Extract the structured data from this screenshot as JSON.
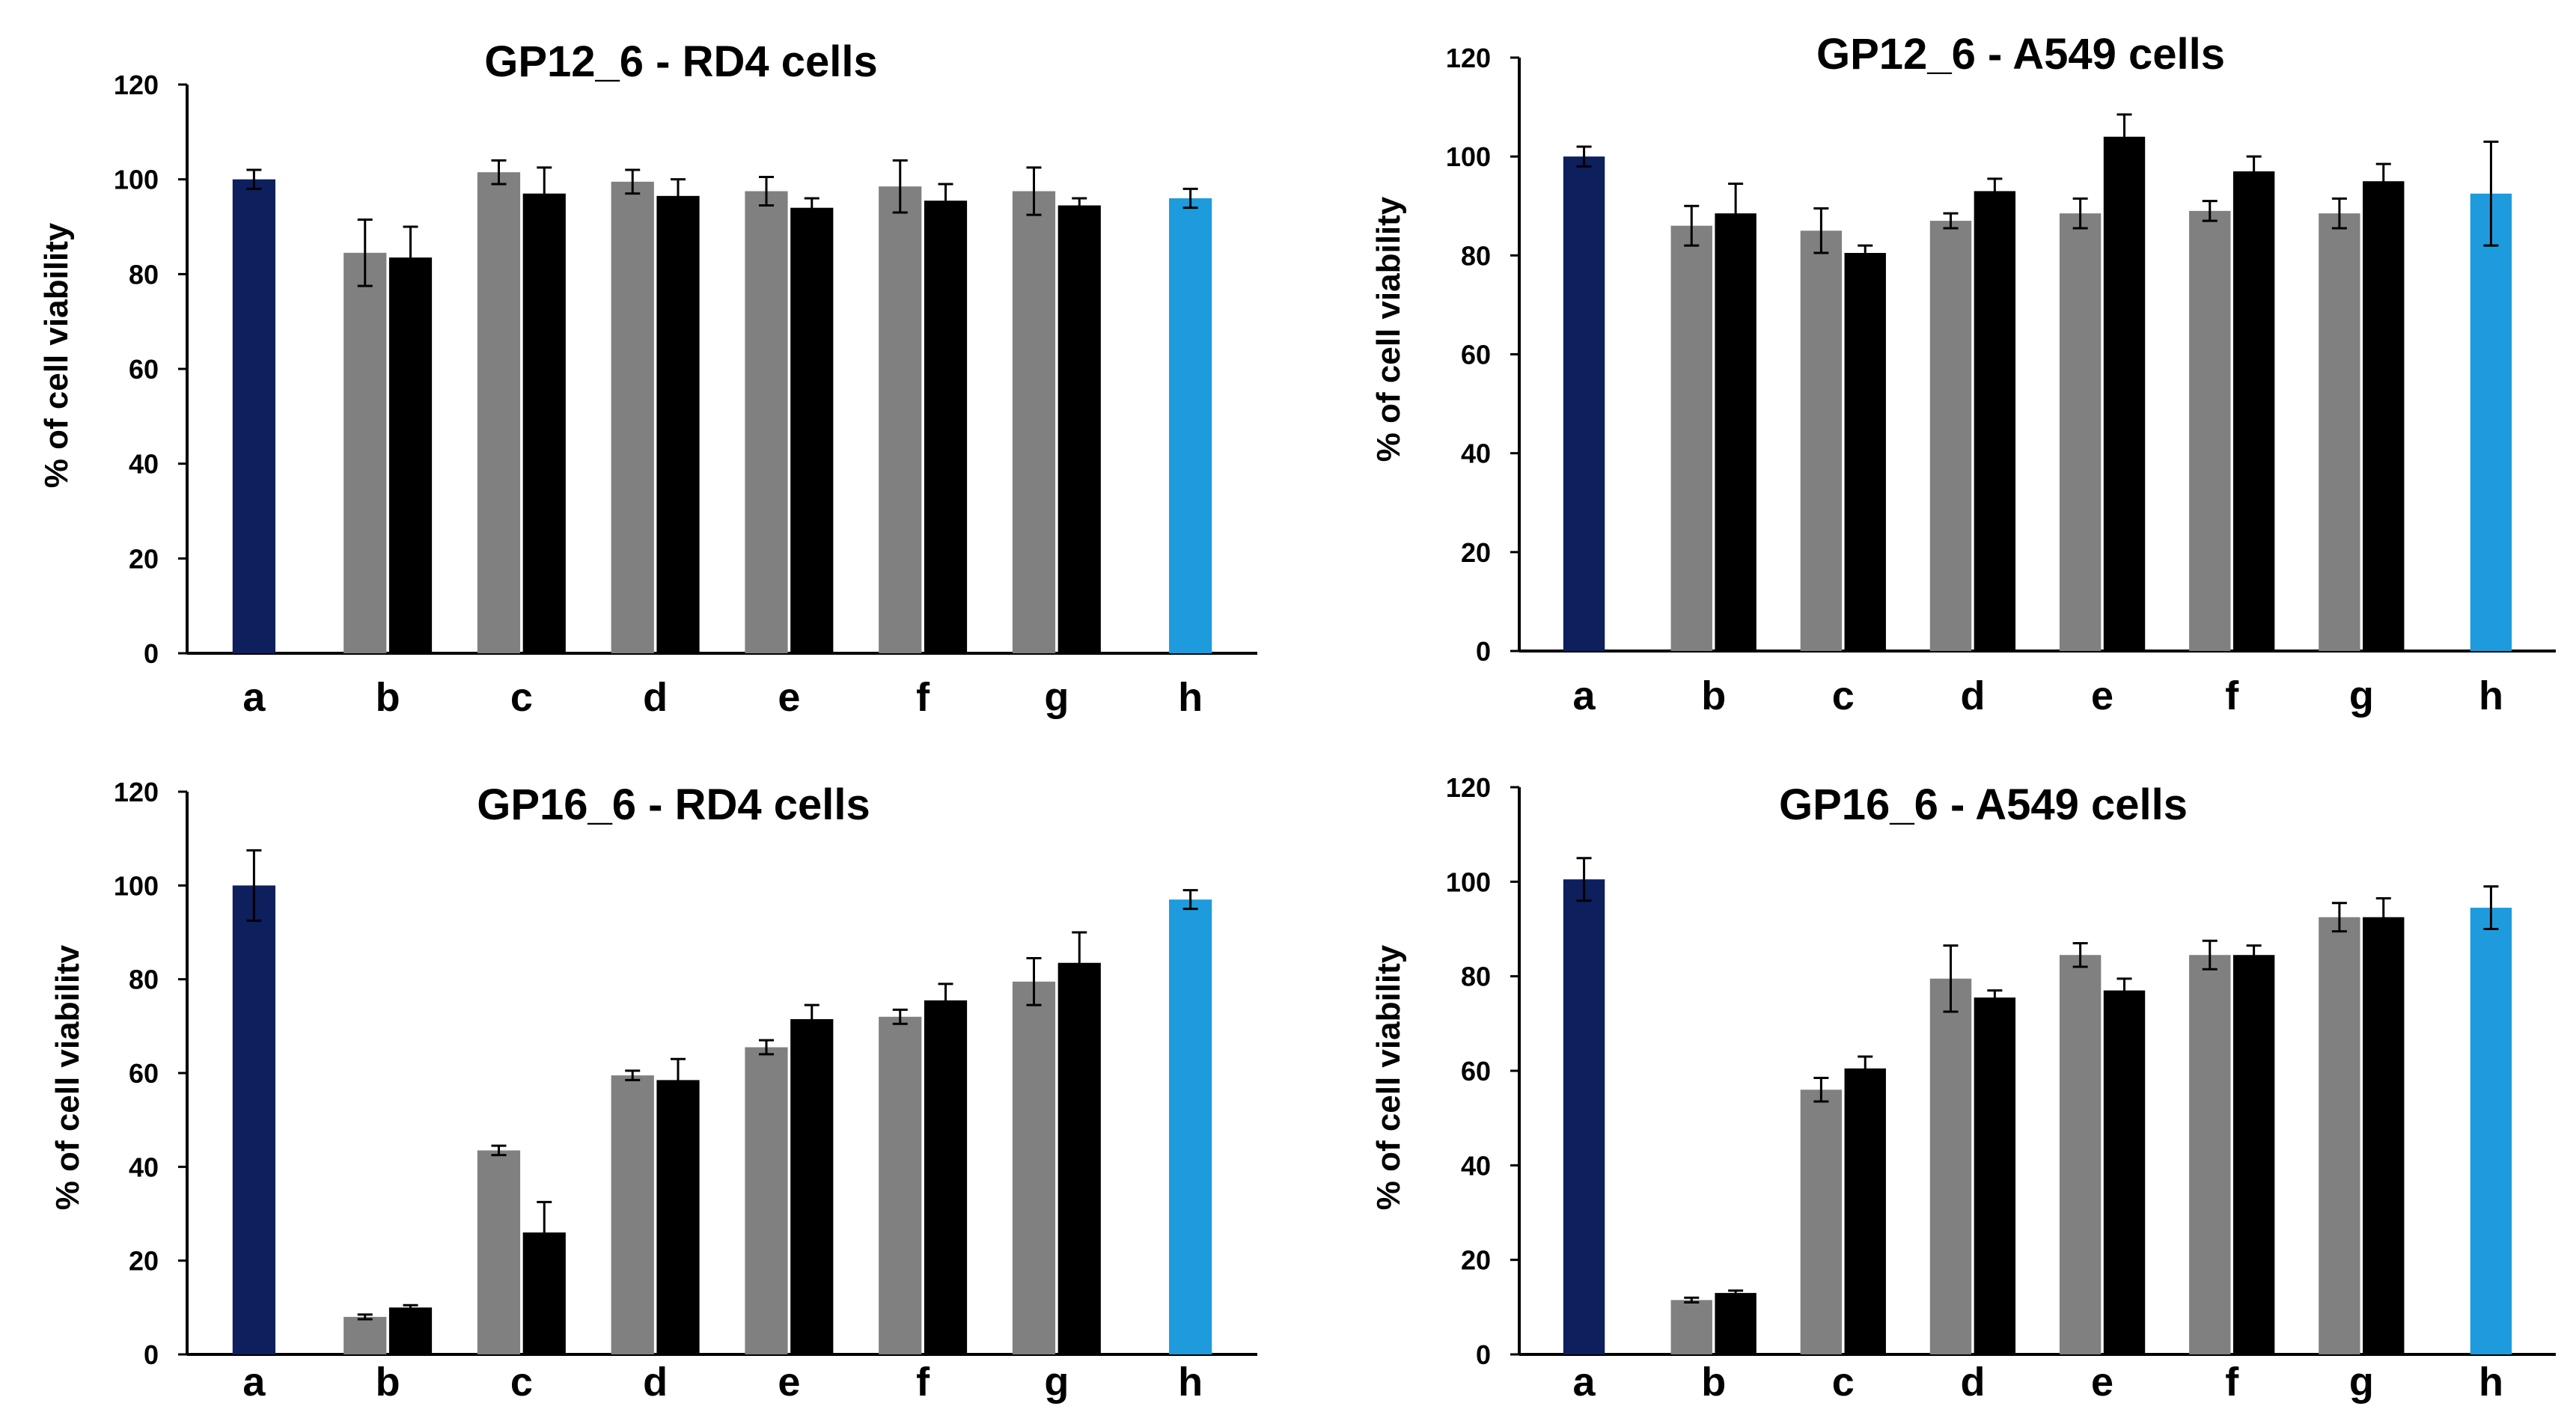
{
  "colors": {
    "control": "#0d1f5c",
    "series_gray": "#808080",
    "series_black": "#000000",
    "reference": "#1e9bdc",
    "error_bar": "#000000",
    "axis": "#000000"
  },
  "chart_data": [
    {
      "type": "bar",
      "title": "GP12_6 - RD4 cells",
      "ylabel": "% of cell viability",
      "xlabel": "",
      "ylim": [
        0,
        120
      ],
      "yticks": [
        0,
        20,
        40,
        60,
        80,
        100,
        120
      ],
      "grid": false,
      "categories": [
        "a",
        "b",
        "c",
        "d",
        "e",
        "f",
        "g",
        "h"
      ],
      "bars": [
        {
          "category": "a",
          "group": "control",
          "value": 100,
          "error": 2
        },
        {
          "category": "b",
          "group": "gray",
          "value": 84.5,
          "error": 7
        },
        {
          "category": "b",
          "group": "black",
          "value": 83.5,
          "error": 6.5
        },
        {
          "category": "c",
          "group": "gray",
          "value": 101.5,
          "error": 2.5
        },
        {
          "category": "c",
          "group": "black",
          "value": 97,
          "error": 5.5
        },
        {
          "category": "d",
          "group": "gray",
          "value": 99.5,
          "error": 2.5
        },
        {
          "category": "d",
          "group": "black",
          "value": 96.5,
          "error": 3.5
        },
        {
          "category": "e",
          "group": "gray",
          "value": 97.5,
          "error": 3
        },
        {
          "category": "e",
          "group": "black",
          "value": 94,
          "error": 2
        },
        {
          "category": "f",
          "group": "gray",
          "value": 98.5,
          "error": 5.5
        },
        {
          "category": "f",
          "group": "black",
          "value": 95.5,
          "error": 3.5
        },
        {
          "category": "g",
          "group": "gray",
          "value": 97.5,
          "error": 5
        },
        {
          "category": "g",
          "group": "black",
          "value": 94.5,
          "error": 1.5
        },
        {
          "category": "h",
          "group": "reference",
          "value": 96,
          "error": 2
        }
      ]
    },
    {
      "type": "bar",
      "title": "GP12_6 - A549 cells",
      "ylabel": "% of cell viability",
      "xlabel": "",
      "ylim": [
        0,
        120
      ],
      "yticks": [
        0,
        20,
        40,
        60,
        80,
        100,
        120
      ],
      "grid": false,
      "categories": [
        "a",
        "b",
        "c",
        "d",
        "e",
        "f",
        "g",
        "h"
      ],
      "bars": [
        {
          "category": "a",
          "group": "control",
          "value": 100,
          "error": 2
        },
        {
          "category": "b",
          "group": "gray",
          "value": 86,
          "error": 4
        },
        {
          "category": "b",
          "group": "black",
          "value": 88.5,
          "error": 6
        },
        {
          "category": "c",
          "group": "gray",
          "value": 85,
          "error": 4.5
        },
        {
          "category": "c",
          "group": "black",
          "value": 80.5,
          "error": 1.5
        },
        {
          "category": "d",
          "group": "gray",
          "value": 87,
          "error": 1.5
        },
        {
          "category": "d",
          "group": "black",
          "value": 93,
          "error": 2.5
        },
        {
          "category": "e",
          "group": "gray",
          "value": 88.5,
          "error": 3
        },
        {
          "category": "e",
          "group": "black",
          "value": 104,
          "error": 4.5
        },
        {
          "category": "f",
          "group": "gray",
          "value": 89,
          "error": 2
        },
        {
          "category": "f",
          "group": "black",
          "value": 97,
          "error": 3
        },
        {
          "category": "g",
          "group": "gray",
          "value": 88.5,
          "error": 3
        },
        {
          "category": "g",
          "group": "black",
          "value": 95,
          "error": 3.5
        },
        {
          "category": "h",
          "group": "reference",
          "value": 92.5,
          "error": 10.5
        }
      ]
    },
    {
      "type": "bar",
      "title": "GP16_6 - RD4 cells",
      "ylabel": "% of cell viabilitv",
      "xlabel": "",
      "ylim": [
        0,
        120
      ],
      "yticks": [
        0,
        20,
        40,
        60,
        80,
        100,
        120
      ],
      "grid": false,
      "categories": [
        "a",
        "b",
        "c",
        "d",
        "e",
        "f",
        "g",
        "h"
      ],
      "bars": [
        {
          "category": "a",
          "group": "control",
          "value": 100,
          "error": 7.5
        },
        {
          "category": "b",
          "group": "gray",
          "value": 8,
          "error": 0.5
        },
        {
          "category": "b",
          "group": "black",
          "value": 10,
          "error": 0.5
        },
        {
          "category": "c",
          "group": "gray",
          "value": 43.5,
          "error": 1
        },
        {
          "category": "c",
          "group": "black",
          "value": 26,
          "error": 6.5
        },
        {
          "category": "d",
          "group": "gray",
          "value": 59.5,
          "error": 1
        },
        {
          "category": "d",
          "group": "black",
          "value": 58.5,
          "error": 4.5
        },
        {
          "category": "e",
          "group": "gray",
          "value": 65.5,
          "error": 1.5
        },
        {
          "category": "e",
          "group": "black",
          "value": 71.5,
          "error": 3
        },
        {
          "category": "f",
          "group": "gray",
          "value": 72,
          "error": 1.5
        },
        {
          "category": "f",
          "group": "black",
          "value": 75.5,
          "error": 3.5
        },
        {
          "category": "g",
          "group": "gray",
          "value": 79.5,
          "error": 5
        },
        {
          "category": "g",
          "group": "black",
          "value": 83.5,
          "error": 6.5
        },
        {
          "category": "h",
          "group": "reference",
          "value": 97,
          "error": 2
        }
      ]
    },
    {
      "type": "bar",
      "title": "GP16_6 - A549 cells",
      "ylabel": "% of cell viability",
      "xlabel": "",
      "ylim": [
        0,
        120
      ],
      "yticks": [
        0,
        20,
        40,
        60,
        80,
        100,
        120
      ],
      "grid": false,
      "categories": [
        "a",
        "b",
        "c",
        "d",
        "e",
        "f",
        "g",
        "h"
      ],
      "bars": [
        {
          "category": "a",
          "group": "control",
          "value": 100.5,
          "error": 4.5
        },
        {
          "category": "b",
          "group": "gray",
          "value": 11.5,
          "error": 0.5
        },
        {
          "category": "b",
          "group": "black",
          "value": 13,
          "error": 0.5
        },
        {
          "category": "c",
          "group": "gray",
          "value": 56,
          "error": 2.5
        },
        {
          "category": "c",
          "group": "black",
          "value": 60.5,
          "error": 2.5
        },
        {
          "category": "d",
          "group": "gray",
          "value": 79.5,
          "error": 7
        },
        {
          "category": "d",
          "group": "black",
          "value": 75.5,
          "error": 1.5
        },
        {
          "category": "e",
          "group": "gray",
          "value": 84.5,
          "error": 2.5
        },
        {
          "category": "e",
          "group": "black",
          "value": 77,
          "error": 2.5
        },
        {
          "category": "f",
          "group": "gray",
          "value": 84.5,
          "error": 3
        },
        {
          "category": "f",
          "group": "black",
          "value": 84.5,
          "error": 2
        },
        {
          "category": "g",
          "group": "gray",
          "value": 92.5,
          "error": 3
        },
        {
          "category": "g",
          "group": "black",
          "value": 92.5,
          "error": 4
        },
        {
          "category": "h",
          "group": "reference",
          "value": 94.5,
          "error": 4.5
        }
      ]
    }
  ]
}
